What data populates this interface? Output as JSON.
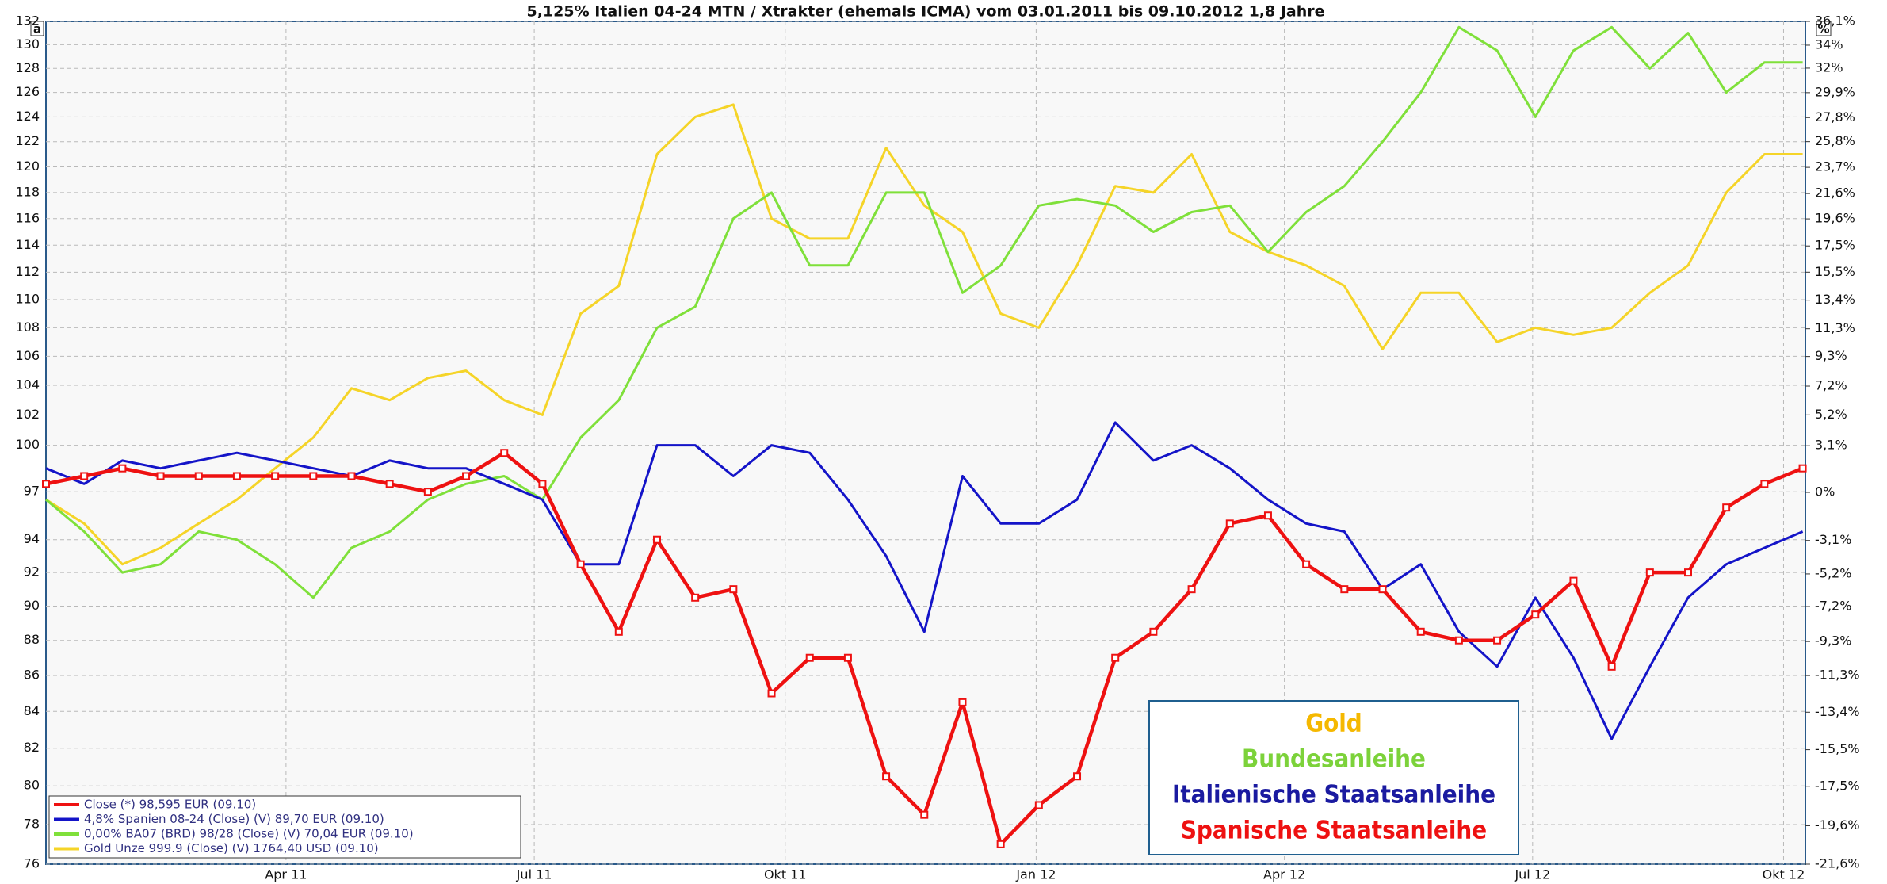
{
  "chart_data": {
    "type": "line",
    "title": "5,125% Italien 04-24 MTN / Xtrakter (ehemals ICMA) vom 03.01.2011 bis 09.10.2012 1,8 Jahre",
    "left_axis_symbol": "a",
    "right_axis_symbol": "%",
    "x": [
      "2011-01-03",
      "2011-01-17",
      "2011-01-31",
      "2011-02-14",
      "2011-02-28",
      "2011-03-14",
      "2011-03-28",
      "2011-04-11",
      "2011-04-25",
      "2011-05-09",
      "2011-05-23",
      "2011-06-06",
      "2011-06-20",
      "2011-07-04",
      "2011-07-18",
      "2011-08-01",
      "2011-08-15",
      "2011-08-29",
      "2011-09-12",
      "2011-09-26",
      "2011-10-10",
      "2011-10-24",
      "2011-11-07",
      "2011-11-21",
      "2011-12-05",
      "2011-12-19",
      "2012-01-02",
      "2012-01-16",
      "2012-01-30",
      "2012-02-13",
      "2012-02-27",
      "2012-03-12",
      "2012-03-26",
      "2012-04-09",
      "2012-04-23",
      "2012-05-07",
      "2012-05-21",
      "2012-06-04",
      "2012-06-18",
      "2012-07-02",
      "2012-07-16",
      "2012-07-30",
      "2012-08-13",
      "2012-08-27",
      "2012-09-10",
      "2012-09-24",
      "2012-10-08"
    ],
    "xlim": [
      "2011-01-03",
      "2012-10-09"
    ],
    "xticks": [
      {
        "value": "2011-04-01",
        "label": "Apr 11"
      },
      {
        "value": "2011-07-01",
        "label": "Jul 11"
      },
      {
        "value": "2011-10-01",
        "label": "Okt 11"
      },
      {
        "value": "2012-01-01",
        "label": "Jan 12"
      },
      {
        "value": "2012-04-01",
        "label": "Apr 12"
      },
      {
        "value": "2012-07-01",
        "label": "Jul 12"
      },
      {
        "value": "2012-10-01",
        "label": "Okt 12"
      }
    ],
    "ylim": [
      76,
      132
    ],
    "yscale": "log",
    "yticks": [
      132,
      130,
      128,
      126,
      124,
      122,
      120,
      118,
      116,
      114,
      112,
      110,
      108,
      106,
      104,
      102,
      100,
      97,
      94,
      92,
      90,
      88,
      86,
      84,
      82,
      80,
      78,
      76
    ],
    "y2lim": [
      -21.6,
      36.1
    ],
    "y2scale": "log",
    "y2ticks": [
      {
        "value": 36.1,
        "label": "36,1%"
      },
      {
        "value": 34,
        "label": "34%"
      },
      {
        "value": 32,
        "label": "32%"
      },
      {
        "value": 29.9,
        "label": "29,9%"
      },
      {
        "value": 27.8,
        "label": "27,8%"
      },
      {
        "value": 25.8,
        "label": "25,8%"
      },
      {
        "value": 23.7,
        "label": "23,7%"
      },
      {
        "value": 21.6,
        "label": "21,6%"
      },
      {
        "value": 19.6,
        "label": "19,6%"
      },
      {
        "value": 17.5,
        "label": "17,5%"
      },
      {
        "value": 15.5,
        "label": "15,5%"
      },
      {
        "value": 13.4,
        "label": "13,4%"
      },
      {
        "value": 11.3,
        "label": "11,3%"
      },
      {
        "value": 9.3,
        "label": "9,3%"
      },
      {
        "value": 7.2,
        "label": "7,2%"
      },
      {
        "value": 5.2,
        "label": "5,2%"
      },
      {
        "value": 3.1,
        "label": "3,1%"
      },
      {
        "value": 0,
        "label": "0%"
      },
      {
        "value": -3.1,
        "label": "-3,1%"
      },
      {
        "value": -5.2,
        "label": "-5,2%"
      },
      {
        "value": -7.2,
        "label": "-7,2%"
      },
      {
        "value": -9.3,
        "label": "-9,3%"
      },
      {
        "value": -11.3,
        "label": "-11,3%"
      },
      {
        "value": -13.4,
        "label": "-13,4%"
      },
      {
        "value": -15.5,
        "label": "-15,5%"
      },
      {
        "value": -17.5,
        "label": "-17,5%"
      },
      {
        "value": -19.6,
        "label": "-19,6%"
      },
      {
        "value": -21.6,
        "label": "-21,6%"
      }
    ],
    "grid": true,
    "legend": "lower left",
    "series": [
      {
        "name": "Close (*) 98,595 EUR (09.10)",
        "color": "#ee1111",
        "markers": true,
        "values": [
          97.5,
          98,
          98.5,
          98,
          98,
          98,
          98,
          98,
          98,
          97.5,
          97,
          98,
          99.5,
          97.5,
          92.5,
          88.5,
          94,
          90.5,
          91,
          85,
          87,
          87,
          80.5,
          78.5,
          84.5,
          77,
          79,
          80.5,
          87,
          88.5,
          91,
          95,
          95.5,
          92.5,
          91,
          91,
          88.5,
          88,
          88,
          89.5,
          91.5,
          86.5,
          92,
          92,
          96,
          97.5,
          98.5
        ]
      },
      {
        "name": "4,8% Spanien 08-24 (Close) (V) 89,70 EUR (09.10)",
        "color": "#1414c8",
        "markers": false,
        "values": [
          98.5,
          97.5,
          99,
          98.5,
          99,
          99.5,
          99,
          98.5,
          98,
          99,
          98.5,
          98.5,
          97.5,
          96.5,
          92.5,
          92.5,
          100,
          100,
          98,
          100,
          99.5,
          96.5,
          93,
          88.5,
          98,
          95,
          95,
          96.5,
          101.5,
          99,
          100,
          98.5,
          96.5,
          95,
          94.5,
          91,
          92.5,
          88.5,
          86.5,
          90.5,
          87,
          82.5,
          86.5,
          90.5,
          92.5,
          93.5,
          94.5
        ]
      },
      {
        "name": "0,00% BA07 (BRD) 98/28 (Close) (V) 70,04 EUR (09.10)",
        "color": "#7fe03a",
        "markers": false,
        "values": [
          96.5,
          94.5,
          92,
          92.5,
          94.5,
          94,
          92.5,
          90.5,
          93.5,
          94.5,
          96.5,
          97.5,
          98,
          96.5,
          100.5,
          103,
          108,
          109.5,
          116,
          118,
          112.5,
          112.5,
          118,
          118,
          110.5,
          112.5,
          117,
          117.5,
          117,
          115,
          116.5,
          117,
          113.5,
          116.5,
          118.5,
          122,
          126,
          131.5,
          129.5,
          124,
          129.5,
          131.5,
          128,
          131,
          126,
          128.5,
          128.5
        ]
      },
      {
        "name": "Gold Unze 999.9 (Close) (V) 1764,40 USD (09.10)",
        "color": "#f5d428",
        "markers": false,
        "values": [
          96.5,
          95,
          92.5,
          93.5,
          95,
          96.5,
          98.5,
          100.5,
          103.8,
          103,
          104.5,
          105,
          103,
          102,
          109,
          111,
          121,
          124,
          125,
          116,
          114.5,
          114.5,
          121.5,
          117,
          115,
          109,
          108,
          112.5,
          118.5,
          118,
          121,
          115,
          113.5,
          112.5,
          111,
          106.5,
          110.5,
          110.5,
          107,
          108,
          107.5,
          108,
          110.5,
          112.5,
          118,
          121,
          121
        ]
      }
    ],
    "annotations": [
      {
        "text": "Gold",
        "color": "#f5b800"
      },
      {
        "text": "Bundesanleihe",
        "color": "#7cd23a"
      },
      {
        "text": "Italienische Staatsanleihe",
        "color": "#1a1aa0"
      },
      {
        "text": "Spanische Staatsanleihe",
        "color": "#ee1111"
      }
    ]
  }
}
